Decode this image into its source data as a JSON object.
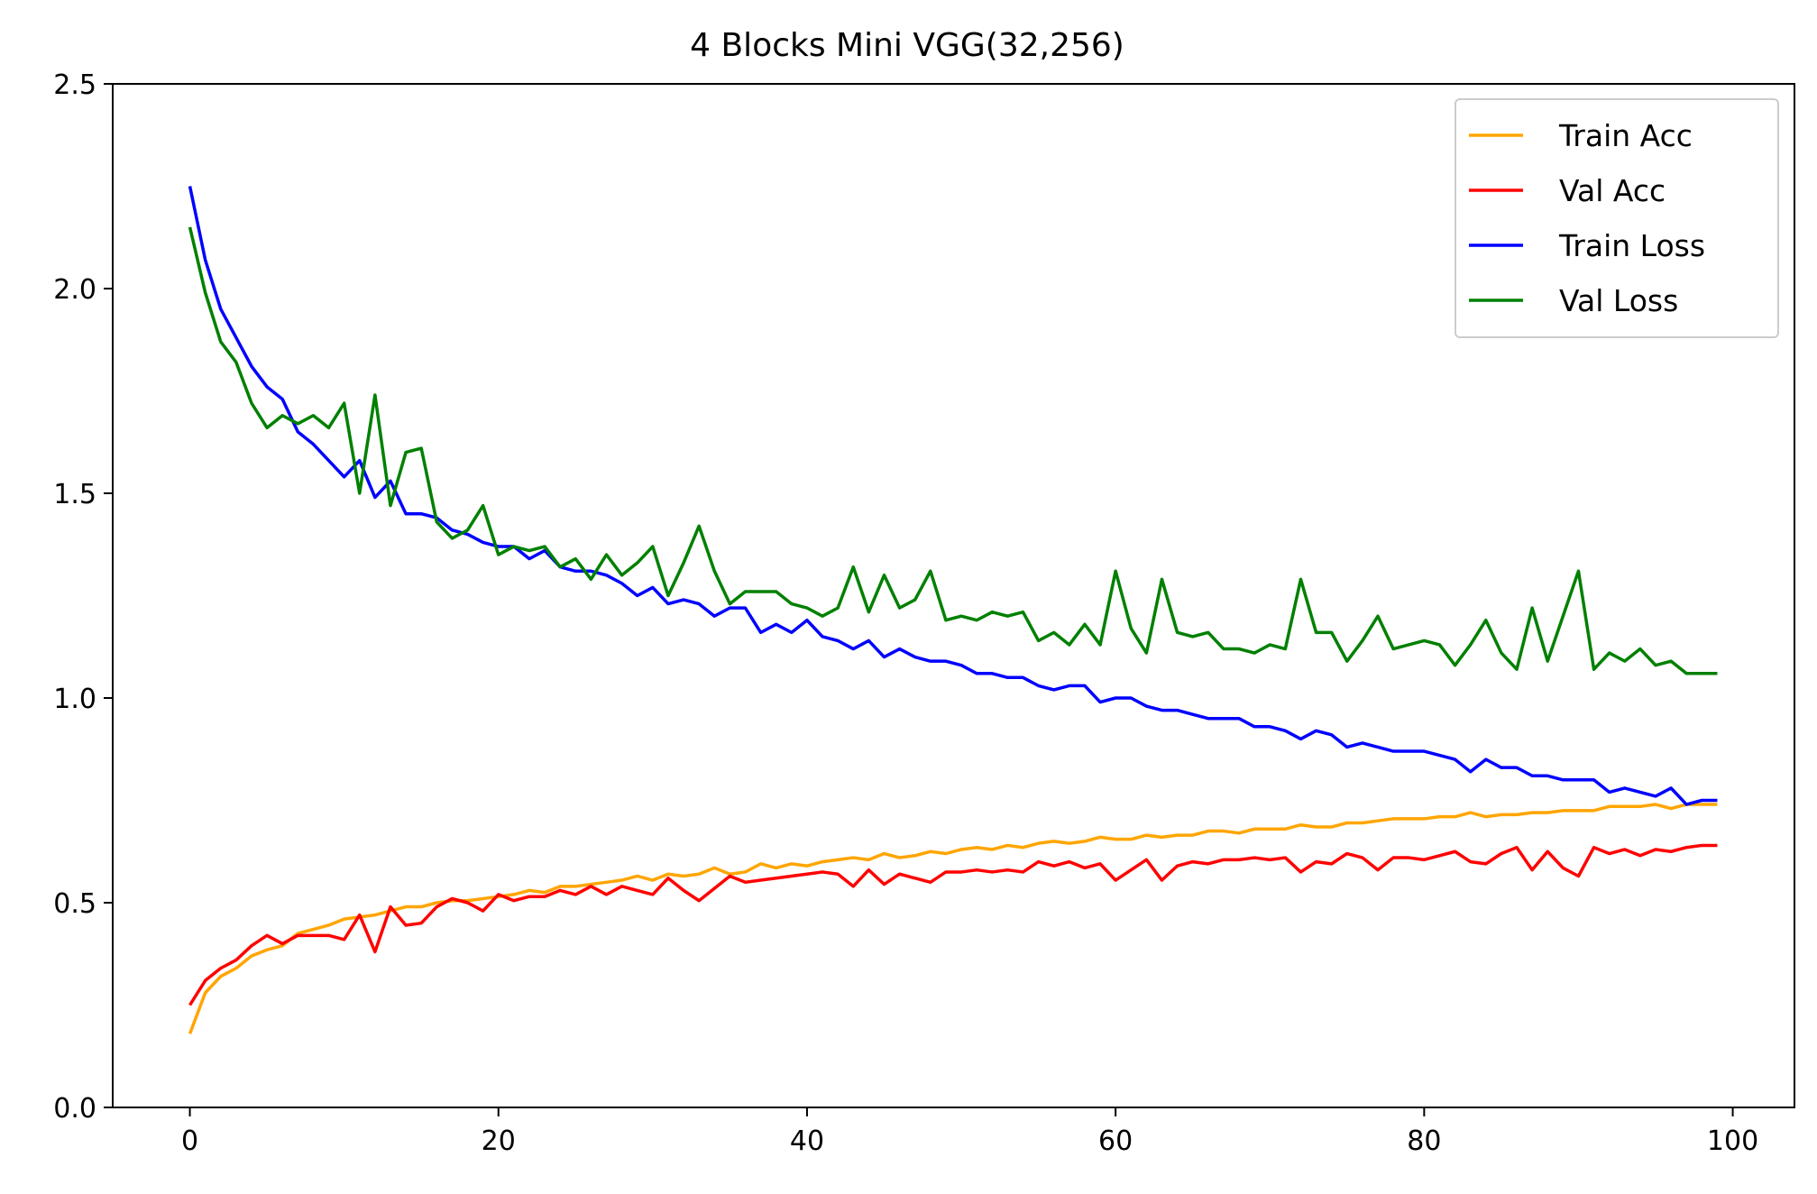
{
  "chart_data": {
    "type": "line",
    "title": "4 Blocks Mini VGG(32,256)",
    "xlabel": "",
    "ylabel": "",
    "xlim": [
      -5,
      104
    ],
    "ylim": [
      0.0,
      2.5
    ],
    "xticks": [
      0,
      20,
      40,
      60,
      80,
      100
    ],
    "yticks": [
      0.0,
      0.5,
      1.0,
      1.5,
      2.0,
      2.5
    ],
    "xtick_labels": [
      "0",
      "20",
      "40",
      "60",
      "80",
      "100"
    ],
    "ytick_labels": [
      "0.0",
      "0.5",
      "1.0",
      "1.5",
      "2.0",
      "2.5"
    ],
    "grid": false,
    "legend_position": "top-right",
    "series": [
      {
        "name": "Train Acc",
        "color": "#FFA500",
        "values": [
          0.18,
          0.28,
          0.32,
          0.34,
          0.37,
          0.385,
          0.395,
          0.425,
          0.435,
          0.445,
          0.46,
          0.465,
          0.47,
          0.48,
          0.49,
          0.49,
          0.5,
          0.505,
          0.505,
          0.51,
          0.515,
          0.52,
          0.53,
          0.525,
          0.54,
          0.54,
          0.545,
          0.55,
          0.555,
          0.565,
          0.555,
          0.57,
          0.565,
          0.57,
          0.585,
          0.57,
          0.575,
          0.595,
          0.585,
          0.595,
          0.59,
          0.6,
          0.605,
          0.61,
          0.605,
          0.62,
          0.61,
          0.615,
          0.625,
          0.62,
          0.63,
          0.635,
          0.63,
          0.64,
          0.635,
          0.645,
          0.65,
          0.645,
          0.65,
          0.66,
          0.655,
          0.655,
          0.665,
          0.66,
          0.665,
          0.665,
          0.675,
          0.675,
          0.67,
          0.68,
          0.68,
          0.68,
          0.69,
          0.685,
          0.685,
          0.695,
          0.695,
          0.7,
          0.705,
          0.705,
          0.705,
          0.71,
          0.71,
          0.72,
          0.71,
          0.715,
          0.715,
          0.72,
          0.72,
          0.725,
          0.725,
          0.725,
          0.735,
          0.735,
          0.735,
          0.74,
          0.73,
          0.74,
          0.74,
          0.74
        ]
      },
      {
        "name": "Val Acc",
        "color": "#FF0000",
        "values": [
          0.25,
          0.31,
          0.34,
          0.36,
          0.395,
          0.42,
          0.4,
          0.42,
          0.42,
          0.42,
          0.41,
          0.47,
          0.38,
          0.49,
          0.445,
          0.45,
          0.49,
          0.51,
          0.5,
          0.48,
          0.52,
          0.505,
          0.515,
          0.515,
          0.53,
          0.52,
          0.54,
          0.52,
          0.54,
          0.53,
          0.52,
          0.56,
          0.53,
          0.505,
          0.535,
          0.565,
          0.55,
          0.555,
          0.56,
          0.565,
          0.57,
          0.575,
          0.57,
          0.54,
          0.58,
          0.545,
          0.57,
          0.56,
          0.55,
          0.575,
          0.575,
          0.58,
          0.575,
          0.58,
          0.575,
          0.6,
          0.59,
          0.6,
          0.585,
          0.595,
          0.555,
          0.58,
          0.605,
          0.555,
          0.59,
          0.6,
          0.595,
          0.605,
          0.605,
          0.61,
          0.605,
          0.61,
          0.575,
          0.6,
          0.595,
          0.62,
          0.61,
          0.58,
          0.61,
          0.61,
          0.605,
          0.615,
          0.625,
          0.6,
          0.595,
          0.62,
          0.635,
          0.58,
          0.625,
          0.585,
          0.565,
          0.635,
          0.62,
          0.63,
          0.615,
          0.63,
          0.625,
          0.635,
          0.64,
          0.64
        ]
      },
      {
        "name": "Train Loss",
        "color": "#0000FF",
        "values": [
          2.25,
          2.07,
          1.95,
          1.88,
          1.81,
          1.76,
          1.73,
          1.65,
          1.62,
          1.58,
          1.54,
          1.58,
          1.49,
          1.53,
          1.45,
          1.45,
          1.44,
          1.41,
          1.4,
          1.38,
          1.37,
          1.37,
          1.34,
          1.36,
          1.32,
          1.31,
          1.31,
          1.3,
          1.28,
          1.25,
          1.27,
          1.23,
          1.24,
          1.23,
          1.2,
          1.22,
          1.22,
          1.16,
          1.18,
          1.16,
          1.19,
          1.15,
          1.14,
          1.12,
          1.14,
          1.1,
          1.12,
          1.1,
          1.09,
          1.09,
          1.08,
          1.06,
          1.06,
          1.05,
          1.05,
          1.03,
          1.02,
          1.03,
          1.03,
          0.99,
          1.0,
          1.0,
          0.98,
          0.97,
          0.97,
          0.96,
          0.95,
          0.95,
          0.95,
          0.93,
          0.93,
          0.92,
          0.9,
          0.92,
          0.91,
          0.88,
          0.89,
          0.88,
          0.87,
          0.87,
          0.87,
          0.86,
          0.85,
          0.82,
          0.85,
          0.83,
          0.83,
          0.81,
          0.81,
          0.8,
          0.8,
          0.8,
          0.77,
          0.78,
          0.77,
          0.76,
          0.78,
          0.74,
          0.75,
          0.75
        ]
      },
      {
        "name": "Val Loss",
        "color": "#008000",
        "values": [
          2.15,
          1.99,
          1.87,
          1.82,
          1.72,
          1.66,
          1.69,
          1.67,
          1.69,
          1.66,
          1.72,
          1.5,
          1.74,
          1.47,
          1.6,
          1.61,
          1.43,
          1.39,
          1.41,
          1.47,
          1.35,
          1.37,
          1.36,
          1.37,
          1.32,
          1.34,
          1.29,
          1.35,
          1.3,
          1.33,
          1.37,
          1.25,
          1.33,
          1.42,
          1.31,
          1.23,
          1.26,
          1.26,
          1.26,
          1.23,
          1.22,
          1.2,
          1.22,
          1.32,
          1.21,
          1.3,
          1.22,
          1.24,
          1.31,
          1.19,
          1.2,
          1.19,
          1.21,
          1.2,
          1.21,
          1.14,
          1.16,
          1.13,
          1.18,
          1.13,
          1.31,
          1.17,
          1.11,
          1.29,
          1.16,
          1.15,
          1.16,
          1.12,
          1.12,
          1.11,
          1.13,
          1.12,
          1.29,
          1.16,
          1.16,
          1.09,
          1.14,
          1.2,
          1.12,
          1.13,
          1.14,
          1.13,
          1.08,
          1.13,
          1.19,
          1.11,
          1.07,
          1.22,
          1.09,
          1.2,
          1.31,
          1.07,
          1.11,
          1.09,
          1.12,
          1.08,
          1.09,
          1.06,
          1.06,
          1.06
        ]
      }
    ]
  }
}
